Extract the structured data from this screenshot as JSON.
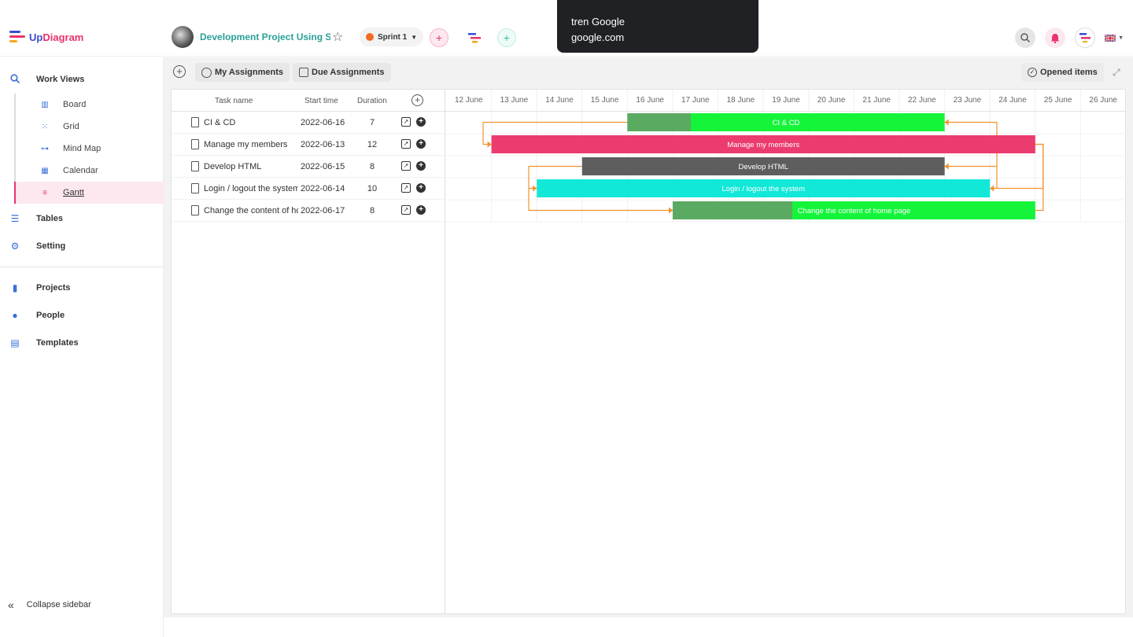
{
  "tooltip": {
    "line1": "tren Google",
    "line2": "google.com"
  },
  "brand": {
    "name_a": "Up",
    "name_b": "Diagram"
  },
  "project": {
    "title": "Development Project Using S..."
  },
  "sprint": {
    "label": "Sprint 1"
  },
  "sidebar": {
    "work_views": "Work Views",
    "sub": [
      "Board",
      "Grid",
      "Mind Map",
      "Calendar",
      "Gantt"
    ],
    "tables": "Tables",
    "setting": "Setting",
    "projects": "Projects",
    "people": "People",
    "templates": "Templates",
    "collapse": "Collapse sidebar"
  },
  "toolbar": {
    "my_assignments": "My Assignments",
    "due_assignments": "Due Assignments",
    "opened_items": "Opened items"
  },
  "grid": {
    "headers": {
      "task": "Task name",
      "start": "Start time",
      "duration": "Duration"
    },
    "tasks": [
      {
        "name": "CI & CD",
        "start": "2022-06-16",
        "duration": "7"
      },
      {
        "name": "Manage my members",
        "start": "2022-06-13",
        "duration": "12"
      },
      {
        "name": "Develop HTML",
        "start": "2022-06-15",
        "duration": "8"
      },
      {
        "name": "Login / logout the system",
        "start": "2022-06-14",
        "duration": "10"
      },
      {
        "name": "Change the content of home page",
        "start": "2022-06-17",
        "duration": "8"
      }
    ]
  },
  "timeline": {
    "days": [
      "12 June",
      "13 June",
      "14 June",
      "15 June",
      "16 June",
      "17 June",
      "18 June",
      "19 June",
      "20 June",
      "21 June",
      "22 June",
      "23 June",
      "24 June",
      "25 June",
      "26 June"
    ],
    "bars": [
      {
        "label": "CI & CD",
        "start_day": 16,
        "duration": 7,
        "progress": 0.2,
        "color": "#14f53a",
        "progress_color": "#5aaa62"
      },
      {
        "label": "Manage my members",
        "start_day": 13,
        "duration": 12,
        "progress": 0,
        "color": "#ec3b6f",
        "progress_color": "#ec3b6f"
      },
      {
        "label": "Develop HTML",
        "start_day": 15,
        "duration": 8,
        "progress": 0,
        "color": "#5e5e5e",
        "progress_color": "#5e5e5e"
      },
      {
        "label": "Login / logout the system",
        "start_day": 14,
        "duration": 10,
        "progress": 0,
        "color": "#12e8d8",
        "progress_color": "#12e8d8"
      },
      {
        "label": "Change the content of home page",
        "start_day": 17,
        "duration": 8,
        "progress": 0.33,
        "color": "#14f53a",
        "progress_color": "#5aaa62"
      }
    ],
    "link_color": "#f0922e"
  }
}
